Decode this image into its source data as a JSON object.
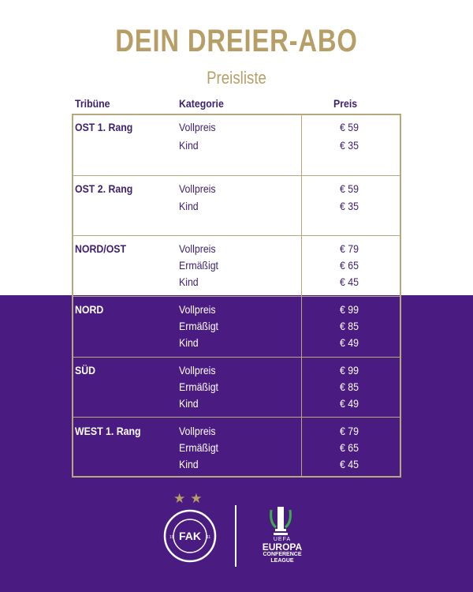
{
  "title": "DEIN DREIER-ABO",
  "subtitle": "Preisliste",
  "headers": {
    "tribune": "Tribüne",
    "kategorie": "Kategorie",
    "preis": "Preis"
  },
  "rows": [
    {
      "tribune": "OST 1. Rang",
      "items": [
        {
          "kategorie": "Vollpreis",
          "preis": "€ 59"
        },
        {
          "kategorie": "Kind",
          "preis": "€ 35"
        }
      ]
    },
    {
      "tribune": "OST 2. Rang",
      "items": [
        {
          "kategorie": "Vollpreis",
          "preis": "€ 59"
        },
        {
          "kategorie": "Kind",
          "preis": "€ 35"
        }
      ]
    },
    {
      "tribune": "NORD/OST",
      "items": [
        {
          "kategorie": "Vollpreis",
          "preis": "€ 79"
        },
        {
          "kategorie": "Ermäßigt",
          "preis": "€ 65"
        },
        {
          "kategorie": "Kind",
          "preis": "€ 45"
        }
      ]
    },
    {
      "tribune": "NORD",
      "items": [
        {
          "kategorie": "Vollpreis",
          "preis": "€ 99"
        },
        {
          "kategorie": "Ermäßigt",
          "preis": "€ 85"
        },
        {
          "kategorie": "Kind",
          "preis": "€ 49"
        }
      ]
    },
    {
      "tribune": "SÜD",
      "items": [
        {
          "kategorie": "Vollpreis",
          "preis": "€ 99"
        },
        {
          "kategorie": "Ermäßigt",
          "preis": "€ 85"
        },
        {
          "kategorie": "Kind",
          "preis": "€ 49"
        }
      ]
    },
    {
      "tribune": "WEST 1. Rang",
      "items": [
        {
          "kategorie": "Vollpreis",
          "preis": "€ 79"
        },
        {
          "kategorie": "Ermäßigt",
          "preis": "€ 65"
        },
        {
          "kategorie": "Kind",
          "preis": "€ 45"
        }
      ]
    }
  ],
  "logos": {
    "fak": {
      "text": "FUSSBALLKLUB AUSTRIA WIEN",
      "initials": "FAK",
      "year_left": "19",
      "year_right": "11"
    },
    "ecl": {
      "uefa": "UEFA",
      "line1": "EUROPA",
      "line2": "CONFERENCE",
      "line3": "LEAGUE"
    }
  },
  "colors": {
    "gold": "#b69e66",
    "purple": "#4a1c82",
    "text_dark": "#3d1f6f",
    "border": "#b6a77e"
  }
}
